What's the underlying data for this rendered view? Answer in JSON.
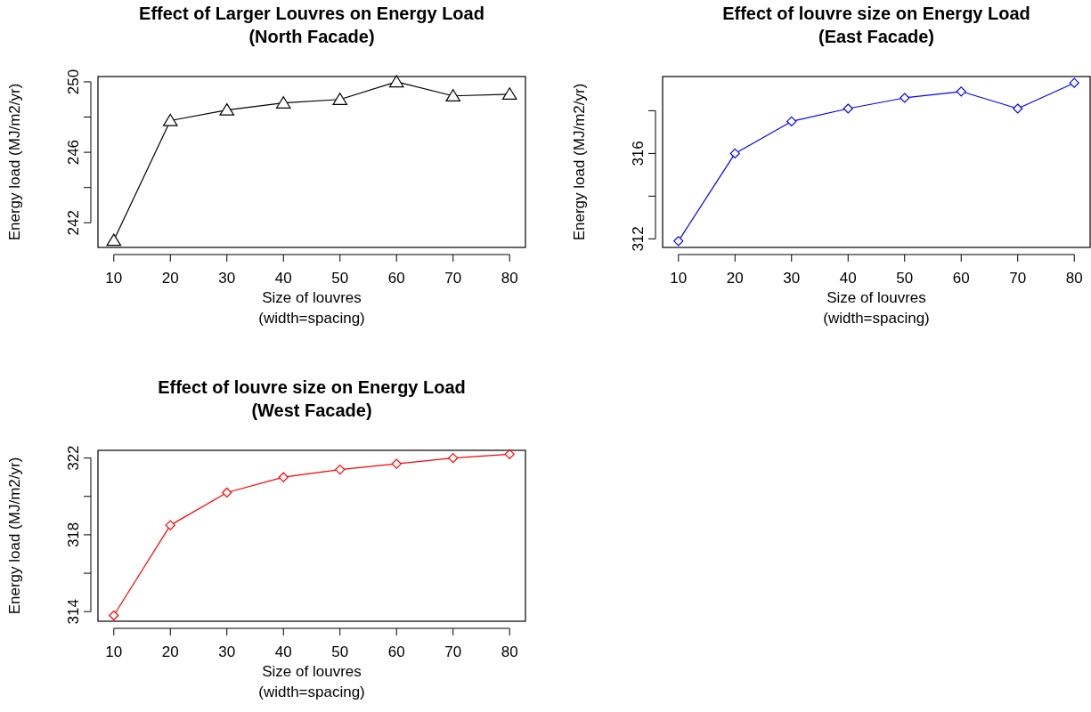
{
  "chart_data": [
    {
      "type": "line",
      "title": "Effect of Larger Louvres on Energy Load\n(North Facade)",
      "xlabel": "Size of louvres\n(width=spacing)",
      "ylabel": "Energy load (MJ/m2/yr)",
      "marker": "triangle",
      "color": "#000000",
      "x": [
        10,
        20,
        30,
        40,
        50,
        60,
        70,
        80
      ],
      "values": [
        241.0,
        247.8,
        248.4,
        248.8,
        249.0,
        250.0,
        249.2,
        249.3
      ],
      "xlim": [
        7.2,
        82.8
      ],
      "ylim": [
        240.6,
        250.3
      ],
      "xticks": [
        10,
        20,
        30,
        40,
        50,
        60,
        70,
        80
      ],
      "yticks": [
        242,
        {
          "value": 244,
          "label": null
        },
        246,
        {
          "value": 248,
          "label": null
        },
        250
      ]
    },
    {
      "type": "line",
      "title": "Effect of louvre size on Energy Load\n(East Facade)",
      "xlabel": "Size of louvres\n(width=spacing)",
      "ylabel": "Energy load (MJ/m2/yr)",
      "marker": "diamond",
      "color": "#0000ff",
      "x": [
        10,
        20,
        30,
        40,
        50,
        60,
        70,
        80
      ],
      "values": [
        311.9,
        316.0,
        317.5,
        318.1,
        318.6,
        318.9,
        318.1,
        319.3
      ],
      "xlim": [
        7.2,
        82.8
      ],
      "ylim": [
        311.6,
        319.6
      ],
      "xticks": [
        10,
        20,
        30,
        40,
        50,
        60,
        70,
        80
      ],
      "yticks": [
        312,
        {
          "value": 314,
          "label": null
        },
        316,
        {
          "value": 318,
          "label": null
        }
      ]
    },
    {
      "type": "line",
      "title": "Effect of louvre size on Energy Load\n(West Facade)",
      "xlabel": "Size of louvres\n(width=spacing)",
      "ylabel": "Energy load (MJ/m2/yr)",
      "marker": "diamond",
      "color": "#ff0000",
      "x": [
        10,
        20,
        30,
        40,
        50,
        60,
        70,
        80
      ],
      "values": [
        313.8,
        318.5,
        320.2,
        321.0,
        321.4,
        321.7,
        322.0,
        322.2
      ],
      "xlim": [
        7.2,
        82.8
      ],
      "ylim": [
        313.5,
        322.4
      ],
      "xticks": [
        10,
        20,
        30,
        40,
        50,
        60,
        70,
        80
      ],
      "yticks": [
        314,
        {
          "value": 316,
          "label": null
        },
        318,
        {
          "value": 320,
          "label": null
        },
        322
      ]
    }
  ]
}
